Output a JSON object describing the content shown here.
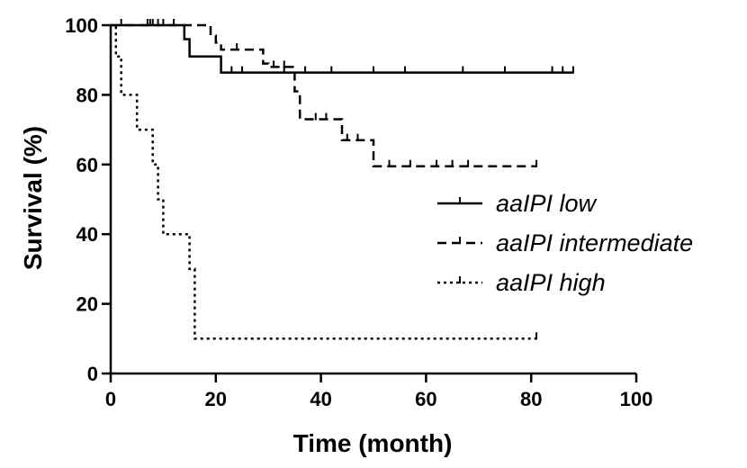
{
  "chart_data": {
    "type": "line",
    "title": "",
    "xlabel": "Time (month)",
    "ylabel": "Survival (%)",
    "xlim": [
      0,
      100
    ],
    "ylim": [
      0,
      100
    ],
    "xticks": [
      0,
      20,
      40,
      60,
      80,
      100
    ],
    "yticks": [
      0,
      20,
      40,
      60,
      80,
      100
    ],
    "grid": false,
    "legend_position": "center-right",
    "series": [
      {
        "name": "aaIPI low",
        "line_style": "solid",
        "color": "#000000",
        "steps": [
          [
            0,
            100
          ],
          [
            14,
            100
          ],
          [
            14,
            96
          ],
          [
            15,
            96
          ],
          [
            15,
            91
          ],
          [
            21,
            91
          ],
          [
            21,
            86.4
          ],
          [
            88,
            86.4
          ]
        ],
        "censored": [
          [
            7,
            100
          ],
          [
            7.5,
            100
          ],
          [
            8,
            100
          ],
          [
            9,
            100
          ],
          [
            10,
            100
          ],
          [
            12,
            100
          ],
          [
            23,
            86.4
          ],
          [
            25,
            86.4
          ],
          [
            33,
            86.4
          ],
          [
            37,
            86.4
          ],
          [
            42,
            86.4
          ],
          [
            50,
            86.4
          ],
          [
            56,
            86.4
          ],
          [
            67,
            86.4
          ],
          [
            75,
            86.4
          ],
          [
            84,
            86.4
          ],
          [
            86,
            86.4
          ],
          [
            88,
            86.4
          ]
        ]
      },
      {
        "name": "aaIPI intermediate",
        "line_style": "dashed",
        "color": "#000000",
        "steps": [
          [
            0,
            100
          ],
          [
            19,
            100
          ],
          [
            19,
            97
          ],
          [
            20,
            97
          ],
          [
            20,
            95
          ],
          [
            21,
            95
          ],
          [
            21,
            93
          ],
          [
            29,
            93
          ],
          [
            29,
            89
          ],
          [
            30,
            89
          ],
          [
            30,
            88
          ],
          [
            35,
            88
          ],
          [
            35,
            81
          ],
          [
            36,
            81
          ],
          [
            36,
            73
          ],
          [
            44,
            73
          ],
          [
            44,
            67
          ],
          [
            50,
            67
          ],
          [
            50,
            59.5
          ],
          [
            81,
            59.5
          ]
        ],
        "censored": [
          [
            2,
            100
          ],
          [
            24,
            93
          ],
          [
            31,
            88
          ],
          [
            33,
            88
          ],
          [
            39,
            73
          ],
          [
            41,
            73
          ],
          [
            45,
            67
          ],
          [
            47,
            67
          ],
          [
            53,
            59.5
          ],
          [
            57,
            59.5
          ],
          [
            62,
            59.5
          ],
          [
            65,
            59.5
          ],
          [
            68,
            59.5
          ],
          [
            81,
            59.5
          ]
        ]
      },
      {
        "name": "aaIPI high",
        "line_style": "dotted",
        "color": "#000000",
        "steps": [
          [
            0,
            100
          ],
          [
            1,
            100
          ],
          [
            1,
            91
          ],
          [
            2,
            91
          ],
          [
            2,
            80
          ],
          [
            5,
            80
          ],
          [
            5,
            70
          ],
          [
            8,
            70
          ],
          [
            8,
            60
          ],
          [
            9,
            60
          ],
          [
            9,
            50
          ],
          [
            10,
            50
          ],
          [
            10,
            40
          ],
          [
            15,
            40
          ],
          [
            15,
            30
          ],
          [
            16,
            30
          ],
          [
            16,
            10
          ],
          [
            81,
            10
          ]
        ],
        "censored": [
          [
            81,
            10
          ]
        ]
      }
    ]
  }
}
